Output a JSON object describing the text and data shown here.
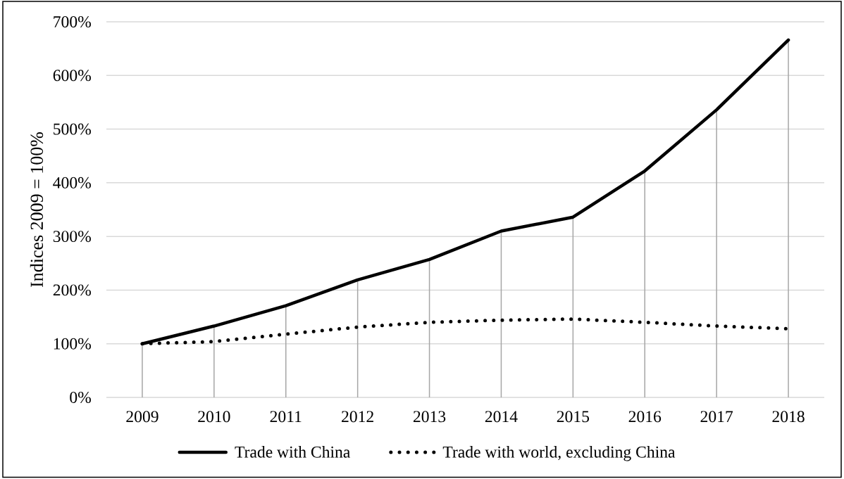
{
  "chart_data": {
    "type": "line",
    "ylabel": "Indices 2009 = 100%",
    "categories": [
      "2009",
      "2010",
      "2011",
      "2012",
      "2013",
      "2014",
      "2015",
      "2016",
      "2017",
      "2018"
    ],
    "series": [
      {
        "type": "bar",
        "color": "#a6a6a6",
        "values": [
          100,
          133,
          171,
          219,
          257,
          310,
          336,
          422,
          536,
          666
        ]
      },
      {
        "name": "Trade with China",
        "color": "#000000",
        "line_style": "solid",
        "values": [
          100,
          133,
          171,
          219,
          257,
          310,
          336,
          422,
          536,
          666
        ]
      },
      {
        "name": "Trade with world, excluding China",
        "color": "#000000",
        "line_style": "dotted",
        "values": [
          100,
          104,
          118,
          131,
          140,
          144,
          146,
          140,
          133,
          128
        ]
      }
    ],
    "ylim": [
      0,
      700
    ],
    "yticks": [
      {
        "value": 0,
        "label": "0%"
      },
      {
        "value": 100,
        "label": "100%"
      },
      {
        "value": 200,
        "label": "200%"
      },
      {
        "value": 300,
        "label": "300%"
      },
      {
        "value": 400,
        "label": "400%"
      },
      {
        "value": 500,
        "label": "500%"
      },
      {
        "value": 600,
        "label": "600%"
      },
      {
        "value": 700,
        "label": "700%"
      }
    ],
    "grid": "y",
    "legend": "bottom"
  }
}
